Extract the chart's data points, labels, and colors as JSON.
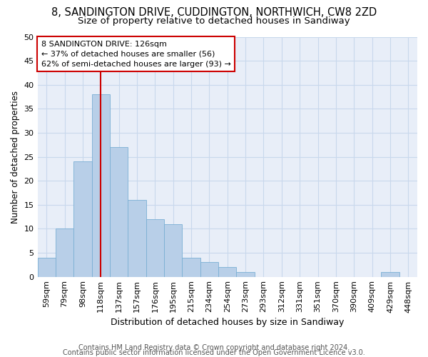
{
  "title1": "8, SANDINGTON DRIVE, CUDDINGTON, NORTHWICH, CW8 2ZD",
  "title2": "Size of property relative to detached houses in Sandiway",
  "xlabel": "Distribution of detached houses by size in Sandiway",
  "ylabel": "Number of detached properties",
  "footer1": "Contains HM Land Registry data © Crown copyright and database right 2024.",
  "footer2": "Contains public sector information licensed under the Open Government Licence v3.0.",
  "categories": [
    "59sqm",
    "79sqm",
    "98sqm",
    "118sqm",
    "137sqm",
    "157sqm",
    "176sqm",
    "195sqm",
    "215sqm",
    "234sqm",
    "254sqm",
    "273sqm",
    "293sqm",
    "312sqm",
    "331sqm",
    "351sqm",
    "370sqm",
    "390sqm",
    "409sqm",
    "429sqm",
    "448sqm"
  ],
  "values": [
    4,
    10,
    24,
    38,
    27,
    16,
    12,
    11,
    4,
    3,
    2,
    1,
    0,
    0,
    0,
    0,
    0,
    0,
    0,
    1,
    0
  ],
  "bar_color": "#b8cfe8",
  "bar_edge_color": "#7aafd4",
  "grid_color": "#c8d8ec",
  "background_color": "#e8eef8",
  "vline_x_idx": 3,
  "vline_color": "#cc0000",
  "annot_line1": "8 SANDINGTON DRIVE: 126sqm",
  "annot_line2": "← 37% of detached houses are smaller (56)",
  "annot_line3": "62% of semi-detached houses are larger (93) →",
  "annotation_box_color": "#ffffff",
  "annotation_border_color": "#cc0000",
  "ylim": [
    0,
    50
  ],
  "yticks": [
    0,
    5,
    10,
    15,
    20,
    25,
    30,
    35,
    40,
    45,
    50
  ],
  "title1_fontsize": 10.5,
  "title2_fontsize": 9.5,
  "xlabel_fontsize": 9,
  "ylabel_fontsize": 8.5,
  "tick_fontsize": 8,
  "annotation_fontsize": 8,
  "footer_fontsize": 7
}
